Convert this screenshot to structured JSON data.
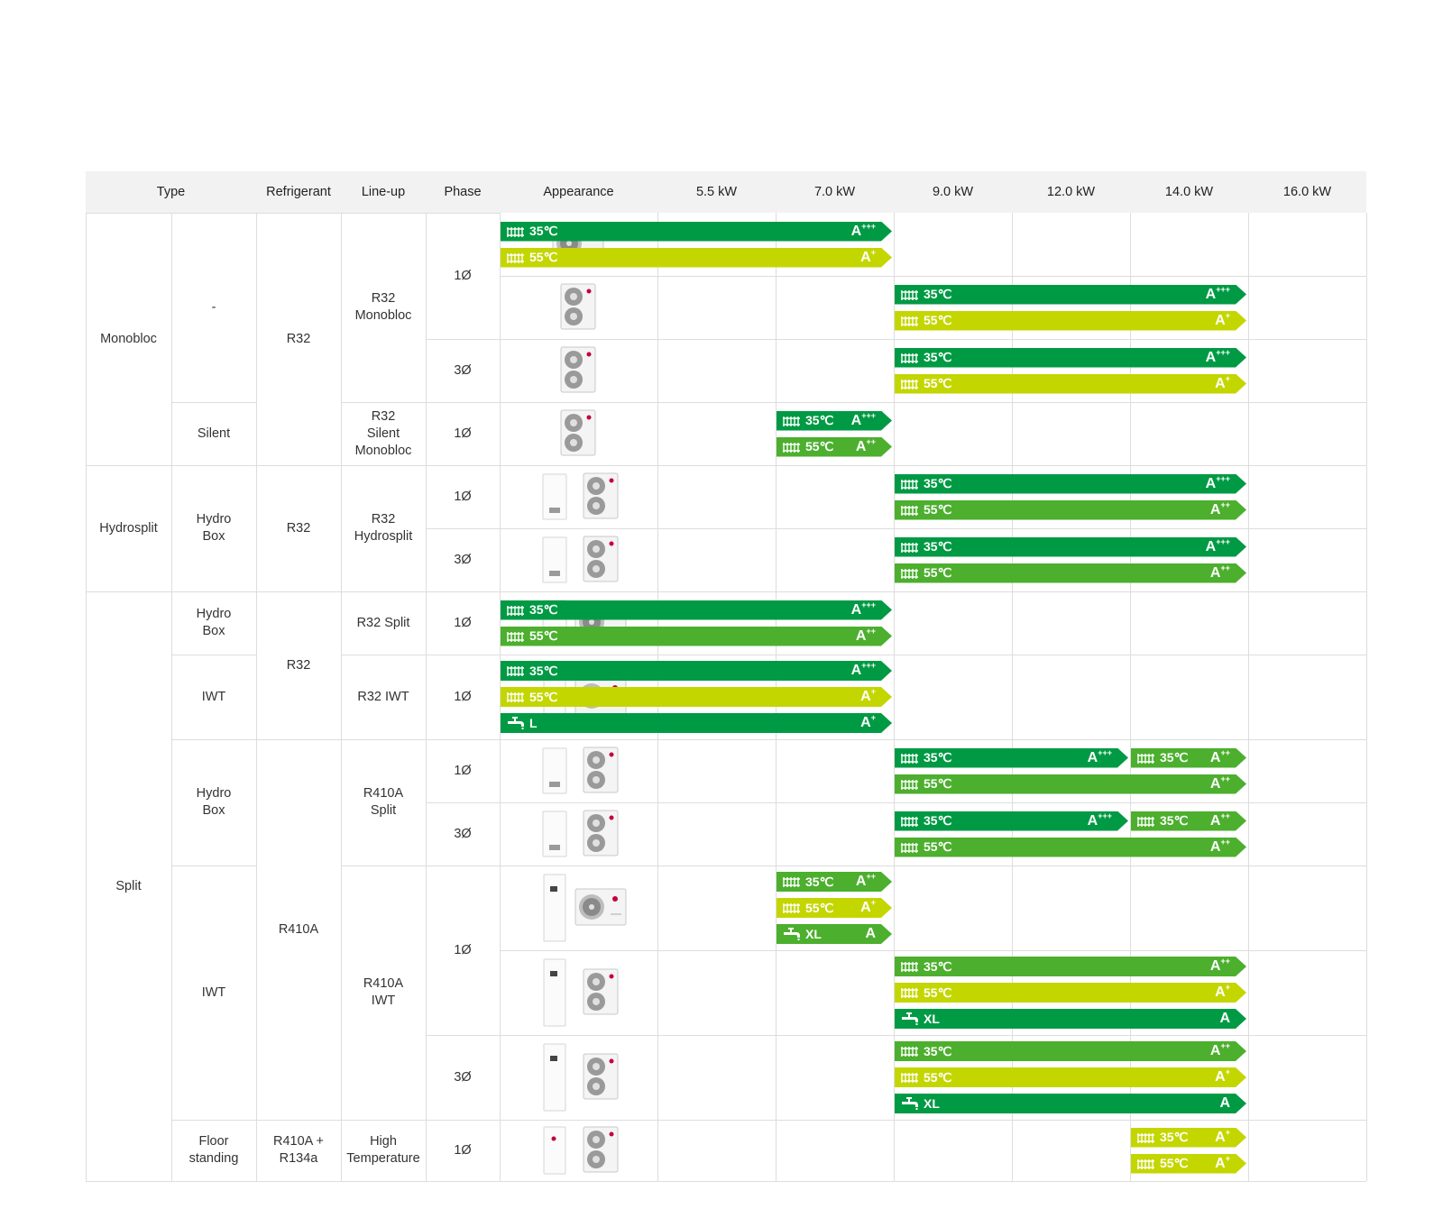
{
  "colors": {
    "dark_green": "#009a44",
    "mid_green": "#4caf2e",
    "lime": "#c4d600",
    "grid_line": "#dddddd",
    "header_bg": "#f2f2f2"
  },
  "headers": [
    "Type",
    "Refrigerant",
    "Line-up",
    "Phase",
    "Appearance",
    "5.5 kW",
    "7.0 kW",
    "9.0 kW",
    "12.0 kW",
    "14.0 kW",
    "16.0 kW"
  ],
  "rows": [
    {
      "type": "Monobloc",
      "sub": "-",
      "refrigerant": "R32",
      "lineup": "R32 Monobloc",
      "phase": "1Ø",
      "appearance": [
        "outdoor-wide"
      ],
      "ratings": [
        {
          "span": "5.5-9.0",
          "bars": [
            {
              "icon": "radiator",
              "temp": "35℃",
              "grade": "A+++",
              "color": "dark_green"
            },
            {
              "icon": "radiator",
              "temp": "55℃",
              "grade": "A+",
              "color": "lime"
            }
          ]
        }
      ]
    },
    {
      "type": "",
      "sub": "",
      "refrigerant": "",
      "lineup": "",
      "phase": "",
      "appearance": [
        "outdoor-tall"
      ],
      "ratings": [
        {
          "span": "12.0-16.0",
          "bars": [
            {
              "icon": "radiator",
              "temp": "35℃",
              "grade": "A+++",
              "color": "dark_green"
            },
            {
              "icon": "radiator",
              "temp": "55℃",
              "grade": "A+",
              "color": "lime"
            }
          ]
        }
      ]
    },
    {
      "type": "",
      "sub": "",
      "refrigerant": "",
      "lineup": "",
      "phase": "3Ø",
      "appearance": [
        "outdoor-tall"
      ],
      "ratings": [
        {
          "span": "12.0-16.0",
          "bars": [
            {
              "icon": "radiator",
              "temp": "35℃",
              "grade": "A+++",
              "color": "dark_green"
            },
            {
              "icon": "radiator",
              "temp": "55℃",
              "grade": "A+",
              "color": "lime"
            }
          ]
        }
      ]
    },
    {
      "type": "",
      "sub": "Silent",
      "refrigerant": "",
      "lineup": "R32 Silent Monobloc",
      "phase": "1Ø",
      "appearance": [
        "outdoor-tall"
      ],
      "ratings": [
        {
          "span": "9.0",
          "bars": [
            {
              "icon": "radiator",
              "temp": "35℃",
              "grade": "A+++",
              "color": "dark_green"
            },
            {
              "icon": "radiator",
              "temp": "55℃",
              "grade": "A++",
              "color": "mid_green"
            }
          ]
        }
      ]
    },
    {
      "type": "Hydrosplit",
      "sub": "Hydro Box",
      "refrigerant": "R32",
      "lineup": "R32 Hydrosplit",
      "phase": "1Ø",
      "appearance": [
        "indoor-box",
        "outdoor-tall"
      ],
      "ratings": [
        {
          "span": "12.0-16.0",
          "bars": [
            {
              "icon": "radiator",
              "temp": "35℃",
              "grade": "A+++",
              "color": "dark_green"
            },
            {
              "icon": "radiator",
              "temp": "55℃",
              "grade": "A++",
              "color": "mid_green"
            }
          ]
        }
      ]
    },
    {
      "type": "",
      "sub": "",
      "refrigerant": "",
      "lineup": "",
      "phase": "3Ø",
      "appearance": [
        "indoor-box",
        "outdoor-tall"
      ],
      "ratings": [
        {
          "span": "12.0-16.0",
          "bars": [
            {
              "icon": "radiator",
              "temp": "35℃",
              "grade": "A+++",
              "color": "dark_green"
            },
            {
              "icon": "radiator",
              "temp": "55℃",
              "grade": "A++",
              "color": "mid_green"
            }
          ]
        }
      ]
    },
    {
      "type": "Split",
      "sub": "Hydro Box",
      "refrigerant": "R32",
      "lineup": "R32 Split",
      "phase": "1Ø",
      "appearance": [
        "indoor-box",
        "outdoor-wide"
      ],
      "ratings": [
        {
          "span": "5.5-9.0",
          "bars": [
            {
              "icon": "radiator",
              "temp": "35℃",
              "grade": "A+++",
              "color": "dark_green"
            },
            {
              "icon": "radiator",
              "temp": "55℃",
              "grade": "A++",
              "color": "mid_green"
            }
          ]
        }
      ]
    },
    {
      "type": "",
      "sub": "IWT",
      "refrigerant": "",
      "lineup": "R32 IWT",
      "phase": "1Ø",
      "appearance": [
        "indoor-tank",
        "outdoor-wide"
      ],
      "ratings": [
        {
          "span": "5.5-9.0",
          "bars": [
            {
              "icon": "radiator",
              "temp": "35℃",
              "grade": "A+++",
              "color": "dark_green"
            },
            {
              "icon": "radiator",
              "temp": "55℃",
              "grade": "A+",
              "color": "lime"
            },
            {
              "icon": "tap",
              "temp": "L",
              "grade": "A+",
              "color": "dark_green"
            }
          ]
        }
      ]
    },
    {
      "type": "",
      "sub": "Hydro Box",
      "refrigerant": "R410A",
      "lineup": "R410A Split",
      "phase": "1Ø",
      "appearance": [
        "indoor-box",
        "outdoor-tall"
      ],
      "ratings": [
        {
          "span": "12.0-14.0",
          "bars": [
            {
              "icon": "radiator",
              "temp": "35℃",
              "grade": "A+++",
              "color": "dark_green"
            }
          ]
        },
        {
          "span": "16.0",
          "bars": [
            {
              "icon": "radiator",
              "temp": "35℃",
              "grade": "A++",
              "color": "mid_green"
            }
          ]
        },
        {
          "span": "12.0-16.0",
          "bars": [
            {
              "icon": "radiator",
              "temp": "55℃",
              "grade": "A++",
              "color": "mid_green"
            }
          ]
        }
      ]
    },
    {
      "type": "",
      "sub": "",
      "refrigerant": "",
      "lineup": "",
      "phase": "3Ø",
      "appearance": [
        "indoor-box",
        "outdoor-tall"
      ],
      "ratings": [
        {
          "span": "12.0-14.0",
          "bars": [
            {
              "icon": "radiator",
              "temp": "35℃",
              "grade": "A+++",
              "color": "dark_green"
            }
          ]
        },
        {
          "span": "16.0",
          "bars": [
            {
              "icon": "radiator",
              "temp": "35℃",
              "grade": "A++",
              "color": "mid_green"
            }
          ]
        },
        {
          "span": "12.0-16.0",
          "bars": [
            {
              "icon": "radiator",
              "temp": "55℃",
              "grade": "A++",
              "color": "mid_green"
            }
          ]
        }
      ]
    },
    {
      "type": "",
      "sub": "IWT",
      "refrigerant": "",
      "lineup": "R410A IWT",
      "phase": "1Ø",
      "appearance": [
        "indoor-tank",
        "outdoor-wide"
      ],
      "ratings": [
        {
          "span": "9.0",
          "bars": [
            {
              "icon": "radiator",
              "temp": "35℃",
              "grade": "A++",
              "color": "mid_green"
            },
            {
              "icon": "radiator",
              "temp": "55℃",
              "grade": "A+",
              "color": "lime"
            },
            {
              "icon": "tap",
              "temp": "XL",
              "grade": "A",
              "color": "mid_green"
            }
          ]
        }
      ]
    },
    {
      "type": "",
      "sub": "",
      "refrigerant": "",
      "lineup": "",
      "phase": "",
      "appearance": [
        "indoor-tank",
        "outdoor-tall"
      ],
      "ratings": [
        {
          "span": "12.0-16.0",
          "bars": [
            {
              "icon": "radiator",
              "temp": "35℃",
              "grade": "A++",
              "color": "mid_green"
            },
            {
              "icon": "radiator",
              "temp": "55℃",
              "grade": "A+",
              "color": "lime"
            },
            {
              "icon": "tap",
              "temp": "XL",
              "grade": "A",
              "color": "dark_green"
            }
          ]
        }
      ]
    },
    {
      "type": "",
      "sub": "",
      "refrigerant": "",
      "lineup": "",
      "phase": "3Ø",
      "appearance": [
        "indoor-tank",
        "outdoor-tall"
      ],
      "ratings": [
        {
          "span": "12.0-16.0",
          "bars": [
            {
              "icon": "radiator",
              "temp": "35℃",
              "grade": "A++",
              "color": "mid_green"
            },
            {
              "icon": "radiator",
              "temp": "55℃",
              "grade": "A+",
              "color": "lime"
            },
            {
              "icon": "tap",
              "temp": "XL",
              "grade": "A",
              "color": "dark_green"
            }
          ]
        }
      ]
    },
    {
      "type": "",
      "sub": "Floor standing",
      "refrigerant": "R410A + R134a",
      "lineup": "High Temperature",
      "phase": "1Ø",
      "appearance": [
        "indoor-floor",
        "outdoor-tall"
      ],
      "ratings": [
        {
          "span": "16.0",
          "bars": [
            {
              "icon": "radiator",
              "temp": "35℃",
              "grade": "A+",
              "color": "lime"
            },
            {
              "icon": "radiator",
              "temp": "55℃",
              "grade": "A+",
              "color": "lime"
            }
          ]
        }
      ]
    }
  ],
  "merged": {
    "type": [
      {
        "label": "Monobloc",
        "rows": [
          0,
          3
        ]
      },
      {
        "label": "Hydrosplit",
        "rows": [
          4,
          5
        ]
      },
      {
        "label": "Split",
        "rows": [
          6,
          13
        ]
      }
    ],
    "sub": [
      {
        "label": "-",
        "rows": [
          0,
          2
        ]
      },
      {
        "label": "Silent",
        "rows": [
          3,
          3
        ]
      },
      {
        "label": "Hydro Box",
        "rows": [
          4,
          5
        ]
      },
      {
        "label": "Hydro Box",
        "rows": [
          6,
          6
        ]
      },
      {
        "label": "IWT",
        "rows": [
          7,
          7
        ]
      },
      {
        "label": "Hydro Box",
        "rows": [
          8,
          9
        ]
      },
      {
        "label": "IWT",
        "rows": [
          10,
          12
        ]
      },
      {
        "label": "Floor standing",
        "rows": [
          13,
          13
        ]
      }
    ],
    "refrigerant": [
      {
        "label": "R32",
        "rows": [
          0,
          3
        ]
      },
      {
        "label": "R32",
        "rows": [
          4,
          5
        ]
      },
      {
        "label": "R32",
        "rows": [
          6,
          7
        ]
      },
      {
        "label": "R410A",
        "rows": [
          8,
          12
        ]
      },
      {
        "label": "R410A + R134a",
        "rows": [
          13,
          13
        ]
      }
    ],
    "lineup": [
      {
        "label": "R32 Monobloc",
        "rows": [
          0,
          2
        ]
      },
      {
        "label": "R32 Silent Monobloc",
        "rows": [
          3,
          3
        ]
      },
      {
        "label": "R32 Hydrosplit",
        "rows": [
          4,
          5
        ]
      },
      {
        "label": "R32 Split",
        "rows": [
          6,
          6
        ]
      },
      {
        "label": "R32 IWT",
        "rows": [
          7,
          7
        ]
      },
      {
        "label": "R410A Split",
        "rows": [
          8,
          9
        ]
      },
      {
        "label": "R410A IWT",
        "rows": [
          10,
          12
        ]
      },
      {
        "label": "High Temperature",
        "rows": [
          13,
          13
        ]
      }
    ],
    "phase": [
      {
        "label": "1Ø",
        "rows": [
          0,
          1
        ]
      },
      {
        "label": "3Ø",
        "rows": [
          2,
          2
        ]
      },
      {
        "label": "1Ø",
        "rows": [
          3,
          3
        ]
      },
      {
        "label": "1Ø",
        "rows": [
          4,
          4
        ]
      },
      {
        "label": "3Ø",
        "rows": [
          5,
          5
        ]
      },
      {
        "label": "1Ø",
        "rows": [
          6,
          6
        ]
      },
      {
        "label": "1Ø",
        "rows": [
          7,
          7
        ]
      },
      {
        "label": "1Ø",
        "rows": [
          8,
          8
        ]
      },
      {
        "label": "3Ø",
        "rows": [
          9,
          9
        ]
      },
      {
        "label": "1Ø",
        "rows": [
          10,
          11
        ]
      },
      {
        "label": "3Ø",
        "rows": [
          12,
          12
        ]
      },
      {
        "label": "1Ø",
        "rows": [
          13,
          13
        ]
      }
    ]
  }
}
